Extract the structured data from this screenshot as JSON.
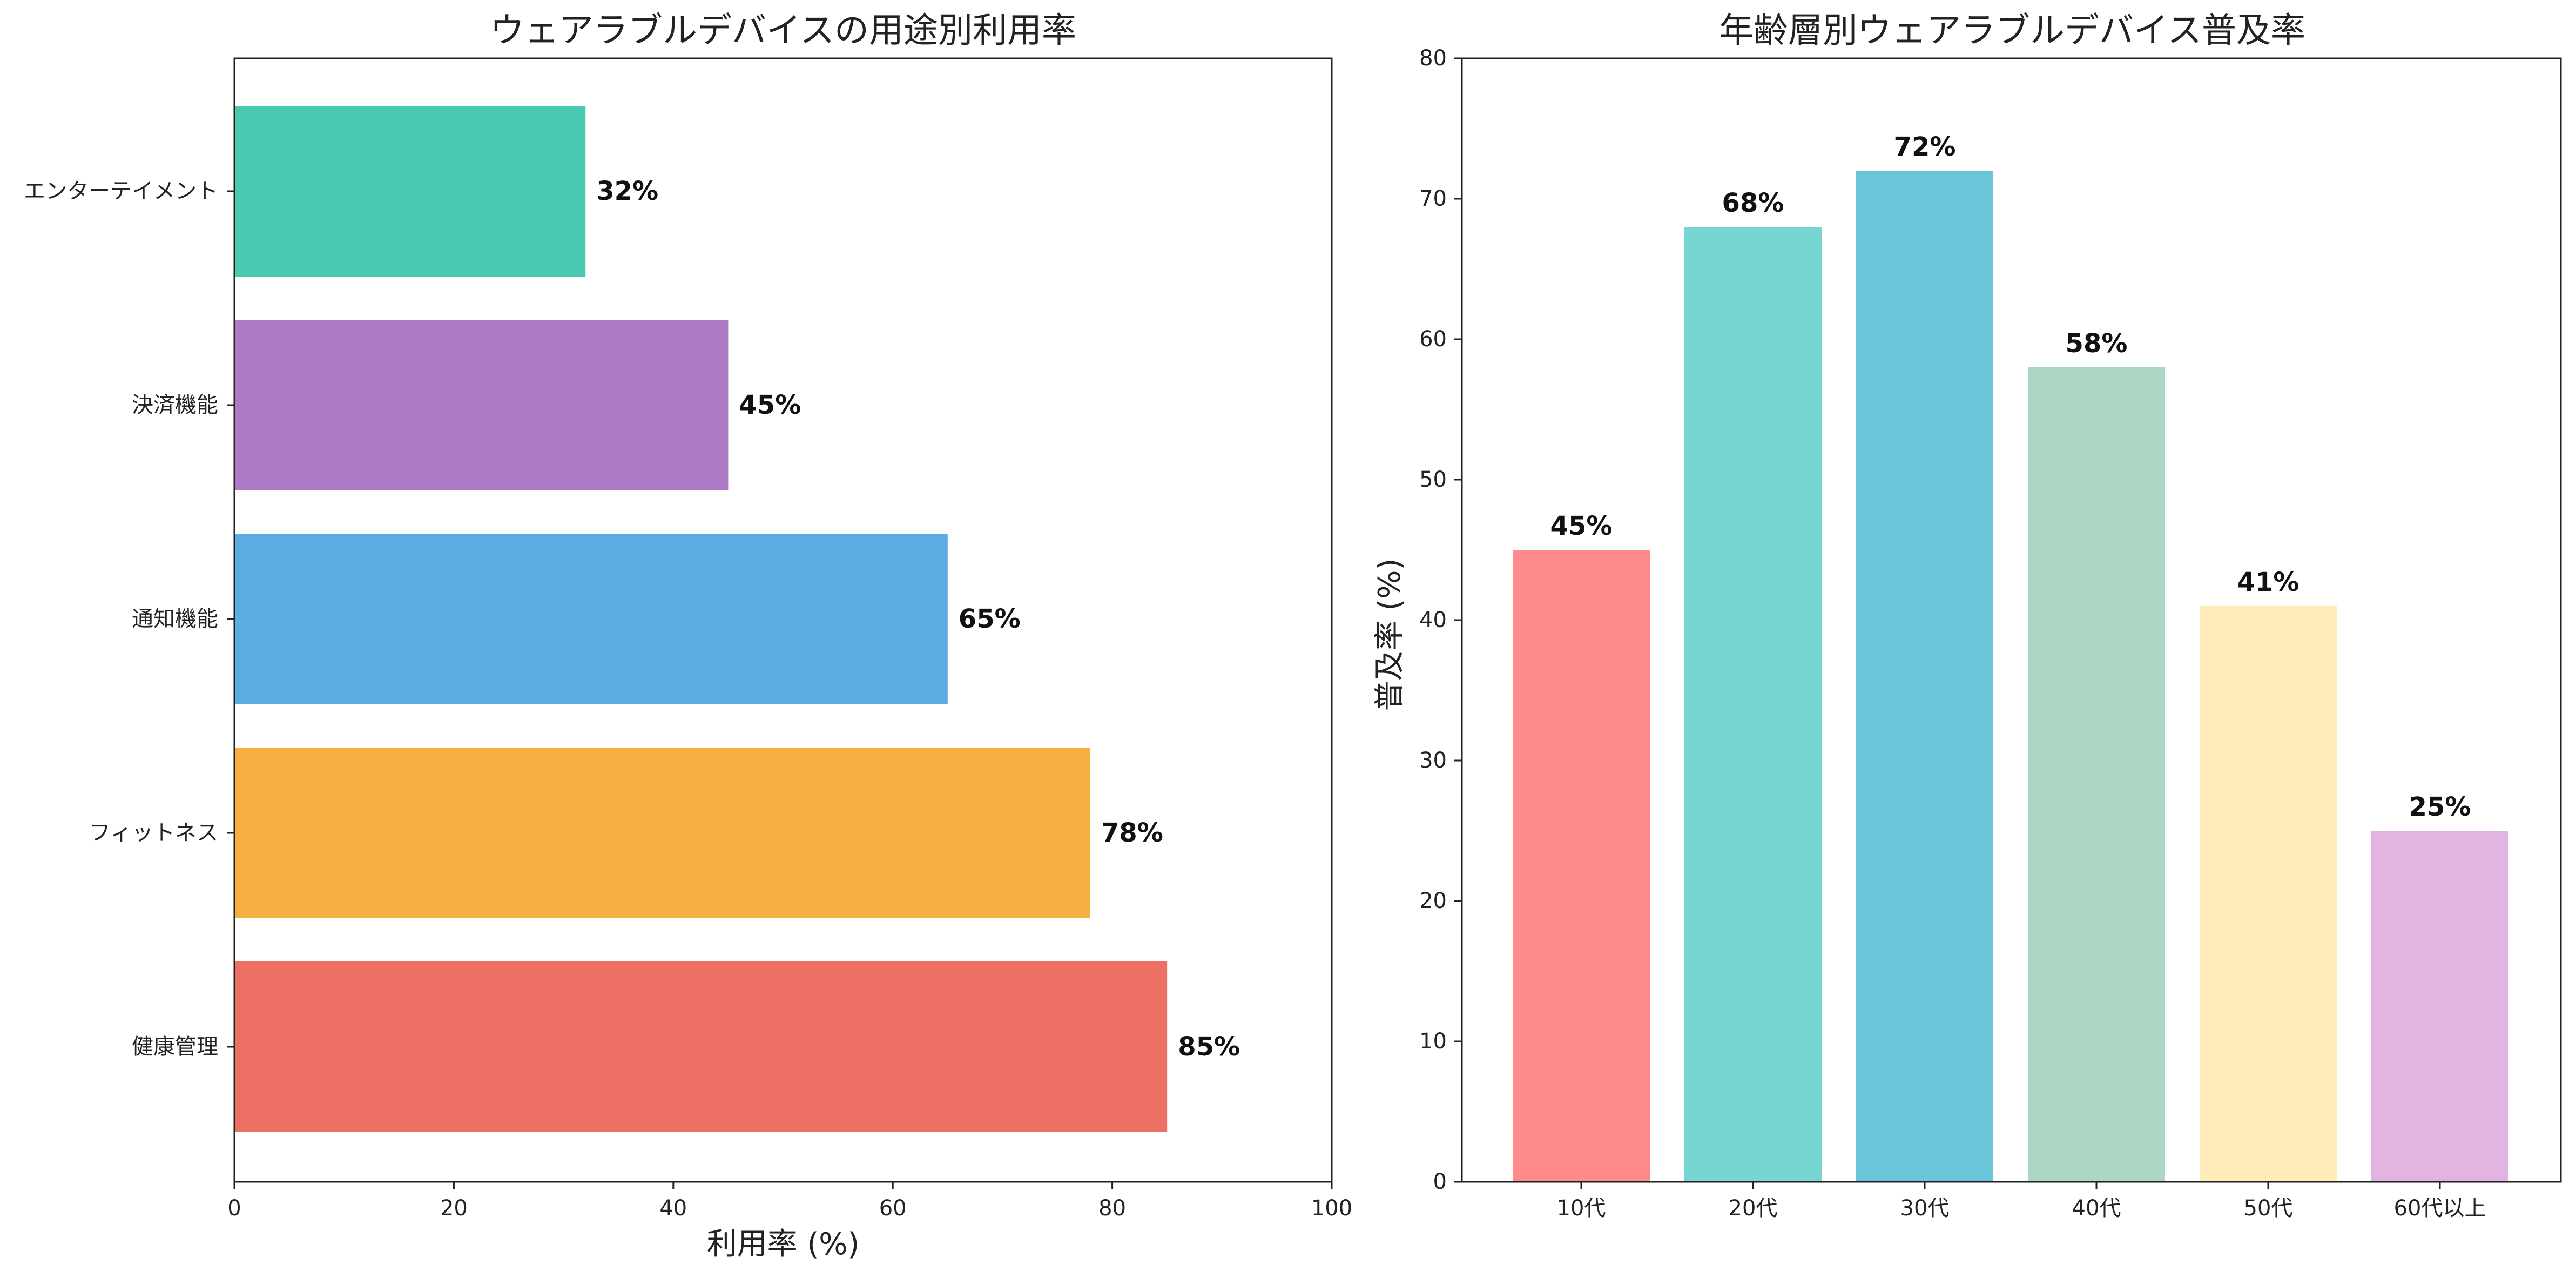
{
  "chart_data": [
    {
      "type": "bar",
      "orientation": "horizontal",
      "title": "ウェアラブルデバイスの用途別利用率",
      "xlabel": "利用率 (%)",
      "ylabel": "",
      "categories": [
        "健康管理",
        "フィットネス",
        "通知機能",
        "決済機能",
        "エンターテイメント"
      ],
      "values": [
        85,
        78,
        65,
        45,
        32
      ],
      "data_labels": [
        "85%",
        "78%",
        "65%",
        "45%",
        "32%"
      ],
      "colors": [
        "#ec7063",
        "#f5b041",
        "#5dade2",
        "#af7ac5",
        "#48c9b0"
      ],
      "xlim": [
        0,
        100
      ],
      "xticks": [
        0,
        20,
        40,
        60,
        80,
        100
      ],
      "grid": false,
      "legend": "none"
    },
    {
      "type": "bar",
      "orientation": "vertical",
      "title": "年齢層別ウェアラブルデバイス普及率",
      "xlabel": "",
      "ylabel": "普及率 (%)",
      "categories": [
        "10代",
        "20代",
        "30代",
        "40代",
        "50代",
        "60代以上"
      ],
      "values": [
        45,
        68,
        72,
        58,
        41,
        25
      ],
      "data_labels": [
        "45%",
        "68%",
        "72%",
        "58%",
        "41%",
        "25%"
      ],
      "colors": [
        "#ff8a8a",
        "#76d7d2",
        "#6ac5d8",
        "#acd8c3",
        "#ffecb8",
        "#e2b4e2"
      ],
      "ylim": [
        0,
        80
      ],
      "yticks": [
        0,
        10,
        20,
        30,
        40,
        50,
        60,
        70,
        80
      ],
      "grid": false,
      "legend": "none"
    }
  ]
}
